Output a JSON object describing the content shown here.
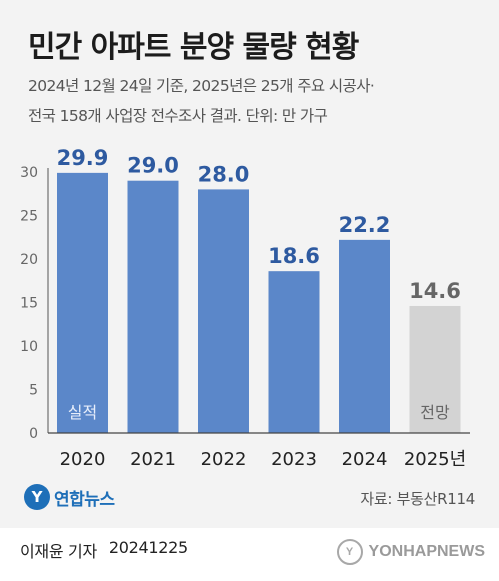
{
  "header": {
    "title": "민간 아파트 분양 물량 현황",
    "subtitle_line1": "2024년 12월 24일 기준, 2025년은 25개 주요 시공사·",
    "subtitle_line2": "전국 158개 사업장 전수조사 결과. 단위: 만 가구"
  },
  "chart_data": {
    "type": "bar",
    "categories": [
      "2020",
      "2021",
      "2022",
      "2023",
      "2024",
      "2025년"
    ],
    "values": [
      29.9,
      29.0,
      28.0,
      18.6,
      22.2,
      14.6
    ],
    "value_labels": [
      "29.9",
      "29.0",
      "28.0",
      "18.6",
      "22.2",
      "14.6"
    ],
    "bar_tags": [
      "실적",
      "",
      "",
      "",
      "",
      "전망"
    ],
    "ylim": [
      0,
      30
    ],
    "yticks": [
      "0",
      "5",
      "10",
      "15",
      "20",
      "25",
      "30"
    ],
    "grid": false,
    "colors": {
      "actual": "#5b87c9",
      "actual_label": "#2e5aa0",
      "forecast": "#d3d3d3",
      "forecast_label": "#666666",
      "tag_on_actual": "#e7eefb",
      "tag_on_forecast": "#666666"
    }
  },
  "footer": {
    "logo_text": "연합뉴스",
    "source": "자료: 부동산R114",
    "reporter": "이재윤 기자",
    "date": "20241225",
    "watermark": "YONHAPNEWS"
  }
}
